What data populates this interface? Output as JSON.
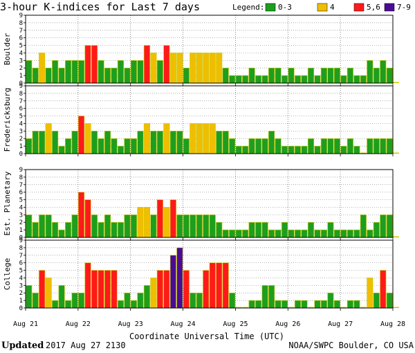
{
  "title": "3-hour K-indices for Last 7 days",
  "legend": {
    "label": "Legend:",
    "items": [
      {
        "label": "0-3",
        "color": "#1e9e1e"
      },
      {
        "label": "4",
        "color": "#f0be00"
      },
      {
        "label": "5,6",
        "color": "#ff1a1a"
      },
      {
        "label": "7-9",
        "color": "#4a0c94"
      }
    ]
  },
  "xlabel": "Coordinate Universal Time (UTC)",
  "footer": {
    "updated_label": "Updated",
    "updated_value": "2017 Aug 27 2130",
    "source": "NOAA/SWPC Boulder, CO USA"
  },
  "chart_data": {
    "type": "bar",
    "ylim": [
      0,
      9
    ],
    "yticks": [
      "0",
      "1",
      "2",
      "3",
      "4",
      "5",
      "6",
      "7",
      "8",
      "9"
    ],
    "xticks": [
      "Aug 21",
      "Aug 22",
      "Aug 23",
      "Aug 24",
      "Aug 25",
      "Aug 26",
      "Aug 27",
      "Aug 28"
    ],
    "bins_per_day": 8,
    "series": [
      {
        "name": "Boulder",
        "values": [
          3,
          2,
          4,
          2,
          3,
          2,
          3,
          3,
          3,
          5,
          5,
          3,
          2,
          2,
          3,
          2,
          3,
          3,
          5,
          4,
          3,
          5,
          4,
          4,
          2,
          4,
          4,
          4,
          4,
          4,
          2,
          1,
          1,
          1,
          2,
          1,
          1,
          2,
          2,
          1,
          2,
          1,
          1,
          2,
          1,
          2,
          2,
          2,
          1,
          2,
          1,
          1,
          3,
          2,
          3,
          2,
          0
        ]
      },
      {
        "name": "Fredericksburg",
        "values": [
          2,
          3,
          3,
          4,
          3,
          1,
          2,
          3,
          5,
          4,
          3,
          2,
          3,
          2,
          1,
          2,
          2,
          3,
          4,
          3,
          3,
          4,
          3,
          3,
          2,
          4,
          4,
          4,
          4,
          3,
          3,
          2,
          1,
          1,
          2,
          2,
          2,
          3,
          2,
          1,
          1,
          1,
          1,
          2,
          1,
          2,
          2,
          2,
          1,
          2,
          1,
          0,
          2,
          2,
          2,
          2,
          0
        ]
      },
      {
        "name": "Est. Planetary",
        "values": [
          3,
          2,
          3,
          3,
          2,
          1,
          2,
          3,
          6,
          5,
          3,
          2,
          3,
          2,
          2,
          3,
          3,
          4,
          4,
          3,
          5,
          4,
          5,
          3,
          3,
          3,
          3,
          3,
          3,
          2,
          1,
          1,
          1,
          1,
          2,
          2,
          2,
          1,
          1,
          2,
          1,
          1,
          1,
          2,
          1,
          1,
          2,
          1,
          1,
          1,
          1,
          3,
          1,
          2,
          3,
          3,
          0
        ]
      },
      {
        "name": "College",
        "values": [
          3,
          2,
          5,
          4,
          1,
          3,
          1,
          2,
          2,
          6,
          5,
          5,
          5,
          5,
          1,
          2,
          1,
          2,
          3,
          4,
          5,
          5,
          7,
          8,
          5,
          2,
          2,
          5,
          6,
          6,
          6,
          2,
          0,
          0,
          1,
          1,
          3,
          3,
          1,
          1,
          0,
          1,
          1,
          0,
          1,
          1,
          2,
          1,
          0,
          1,
          1,
          0,
          4,
          2,
          5,
          2,
          0
        ]
      }
    ]
  }
}
